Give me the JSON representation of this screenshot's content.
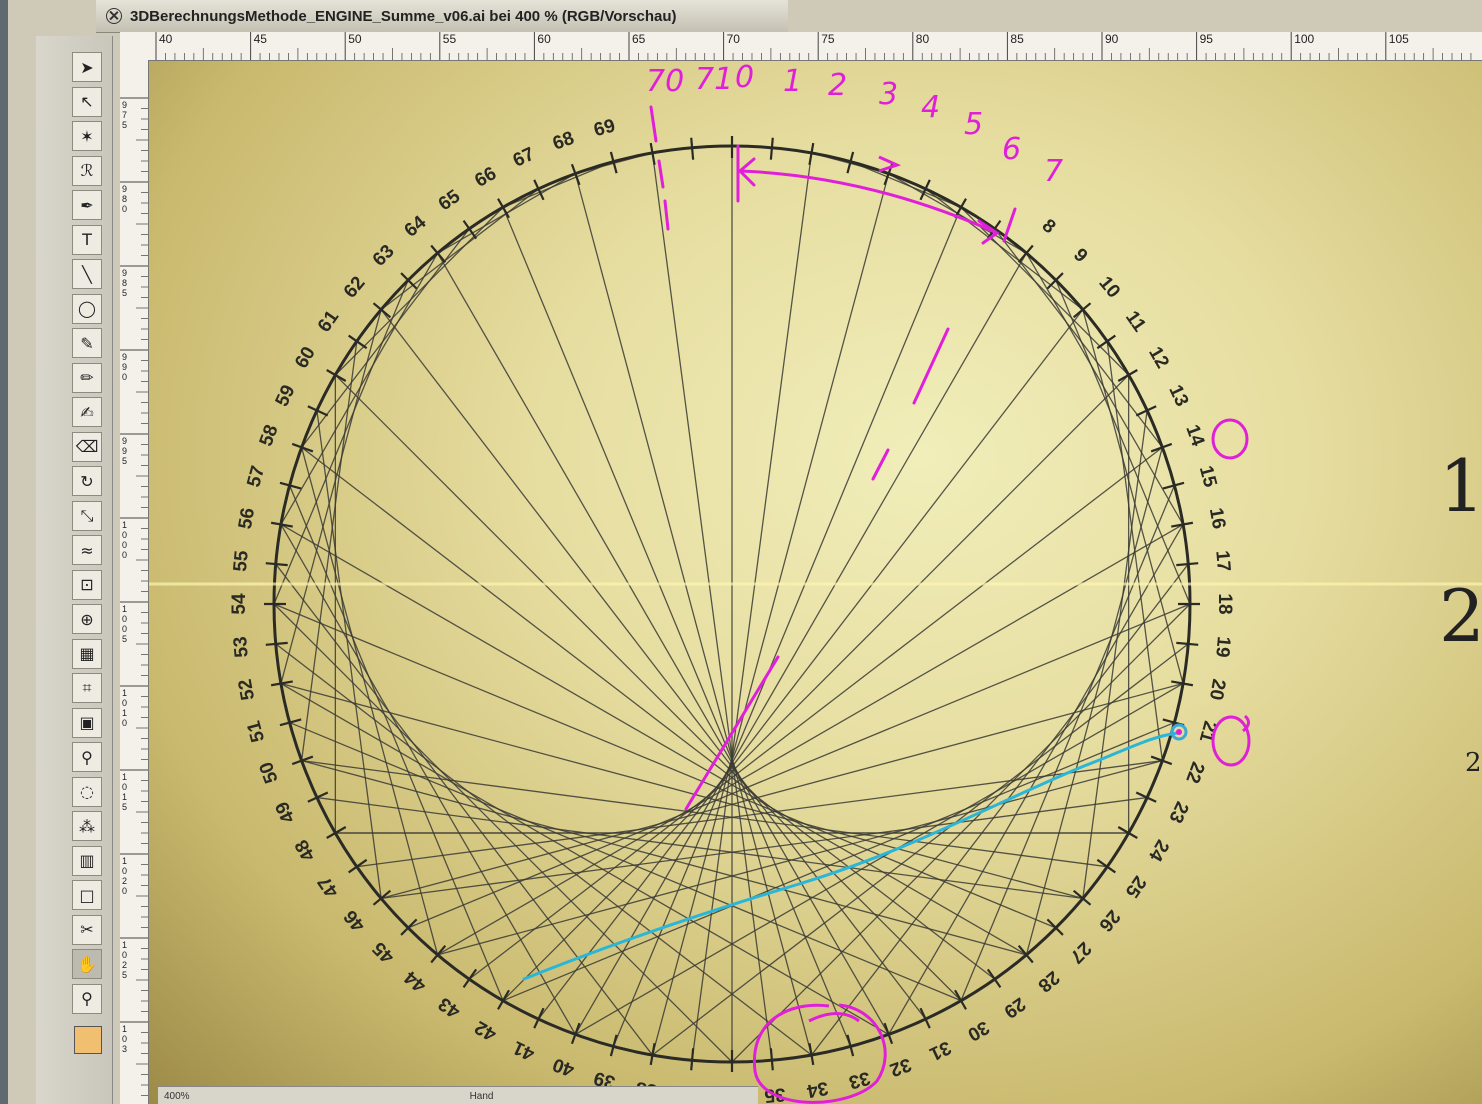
{
  "window": {
    "title": "3DBerechnungsMethode_ENGINE_Summe_v06.ai bei 400 % (RGB/Vorschau)"
  },
  "rulers": {
    "horizontal_labels": [
      "40",
      "45",
      "50",
      "55",
      "60",
      "65",
      "70",
      "75",
      "80",
      "85",
      "90",
      "95",
      "100",
      "105"
    ],
    "vertical_labels": [
      "975",
      "980",
      "985",
      "990",
      "995",
      "1000",
      "1005",
      "1010",
      "1015",
      "1020",
      "1025",
      "103"
    ]
  },
  "toolbox": {
    "tools": [
      {
        "name": "selection-tool",
        "glyph": "➤"
      },
      {
        "name": "direct-selection-tool",
        "glyph": "↖"
      },
      {
        "name": "magic-wand-tool",
        "glyph": "✶"
      },
      {
        "name": "lasso-tool",
        "glyph": "ℛ"
      },
      {
        "name": "pen-tool",
        "glyph": "✒"
      },
      {
        "name": "type-tool",
        "glyph": "T"
      },
      {
        "name": "line-tool",
        "glyph": "╲"
      },
      {
        "name": "ellipse-tool",
        "glyph": "◯"
      },
      {
        "name": "paintbrush-tool",
        "glyph": "✎"
      },
      {
        "name": "pencil-tool",
        "glyph": "✏"
      },
      {
        "name": "blob-brush-tool",
        "glyph": "✍"
      },
      {
        "name": "eraser-tool",
        "glyph": "⌫"
      },
      {
        "name": "rotate-tool",
        "glyph": "↻"
      },
      {
        "name": "scale-tool",
        "glyph": "⤡"
      },
      {
        "name": "warp-tool",
        "glyph": "≈"
      },
      {
        "name": "free-transform-tool",
        "glyph": "⊡"
      },
      {
        "name": "shape-builder-tool",
        "glyph": "⊕"
      },
      {
        "name": "perspective-grid-tool",
        "glyph": "▦"
      },
      {
        "name": "mesh-tool",
        "glyph": "⌗"
      },
      {
        "name": "gradient-tool",
        "glyph": "▣"
      },
      {
        "name": "eyedropper-tool",
        "glyph": "⚲"
      },
      {
        "name": "blend-tool",
        "glyph": "◌"
      },
      {
        "name": "symbol-sprayer-tool",
        "glyph": "⁂"
      },
      {
        "name": "column-graph-tool",
        "glyph": "▥"
      },
      {
        "name": "artboard-tool",
        "glyph": "□"
      },
      {
        "name": "slice-tool",
        "glyph": "✂"
      },
      {
        "name": "hand-tool",
        "glyph": "✋"
      },
      {
        "name": "zoom-tool",
        "glyph": "⚲"
      }
    ]
  },
  "status": {
    "zoom": "400%",
    "tool": "Hand"
  },
  "artwork": {
    "printed_labels_start": 0,
    "printed_labels_end": 71,
    "printed_labels_hidden": [
      0,
      1,
      2,
      3,
      4,
      5,
      6,
      7,
      70,
      71
    ],
    "handwritten_top_labels": [
      "70",
      "71",
      "0",
      "1",
      "2",
      "3",
      "4",
      "5",
      "6",
      "7"
    ],
    "side_glyphs": [
      "1",
      "2",
      "2"
    ],
    "colors": {
      "string_lines": "#3a3a34",
      "ring": "#2b2b26",
      "annotation_magenta": "#e020d8",
      "annotation_cyan": "#29b6d8"
    }
  }
}
